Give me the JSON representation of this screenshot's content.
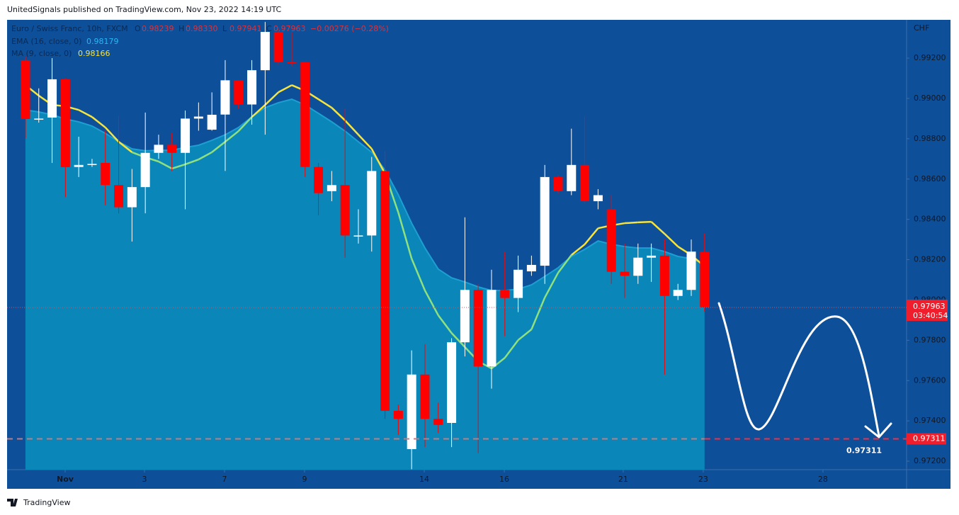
{
  "header": {
    "published": "UnitedSignals published on TradingView.com, Nov 23, 2022 14:19 UTC",
    "footer": "TradingView"
  },
  "chart_data": {
    "type": "candlestick",
    "symbol": "Euro / Swiss Franc, 10h, FXCM",
    "ohlc_legend": [
      {
        "key": "O",
        "text": "0.98239"
      },
      {
        "key": "H",
        "text": "0.98330"
      },
      {
        "key": "L",
        "text": "0.97941"
      },
      {
        "key": "C",
        "text": "0.97963"
      }
    ],
    "change": "−0.00276 (−0.28%)",
    "currency": "CHF",
    "candles": {
      "open": [
        0.9919,
        0.98895,
        0.98905,
        0.99095,
        0.9866,
        0.98675,
        0.9868,
        0.9857,
        0.9846,
        0.9856,
        0.9873,
        0.9877,
        0.9873,
        0.989,
        0.98845,
        0.9892,
        0.9909,
        0.9897,
        0.9914,
        0.9933,
        0.9918,
        0.9918,
        0.9866,
        0.9854,
        0.9857,
        0.9832,
        0.9832,
        0.9864,
        0.9745,
        0.9726,
        0.9763,
        0.9741,
        0.9739,
        0.9779,
        0.9805,
        0.9767,
        0.9805,
        0.9801,
        0.98142,
        0.9817,
        0.9861,
        0.9854,
        0.9867,
        0.9849,
        0.9845,
        0.9814,
        0.9812,
        0.9821,
        0.9822,
        0.9802,
        0.9805,
        0.98239
      ],
      "high": [
        0.99207,
        0.9905,
        0.992,
        0.991,
        0.9881,
        0.987,
        0.9884,
        0.9891,
        0.9865,
        0.9893,
        0.9882,
        0.9883,
        0.9894,
        0.9898,
        0.9903,
        0.9919,
        0.9909,
        0.9919,
        0.9938,
        0.9935,
        0.9933,
        0.9918,
        0.9868,
        0.9864,
        0.9895,
        0.9845,
        0.9871,
        0.9874,
        0.9748,
        0.9775,
        0.9778,
        0.9749,
        0.9781,
        0.9841,
        0.9808,
        0.9815,
        0.9824,
        0.9822,
        0.9822,
        0.9867,
        0.9862,
        0.9885,
        0.9891,
        0.9855,
        0.9852,
        0.9828,
        0.9828,
        0.9828,
        0.983,
        0.9808,
        0.983,
        0.9833
      ],
      "low": [
        0.98803,
        0.9888,
        0.9868,
        0.9851,
        0.9861,
        0.9866,
        0.9847,
        0.9843,
        0.9829,
        0.9843,
        0.987,
        0.9864,
        0.9845,
        0.9884,
        0.9884,
        0.9864,
        0.9895,
        0.9887,
        0.9882,
        0.9917,
        0.9916,
        0.9861,
        0.9842,
        0.9849,
        0.9821,
        0.9828,
        0.9824,
        0.9741,
        0.9733,
        0.9716,
        0.9727,
        0.9734,
        0.9727,
        0.9772,
        0.9724,
        0.9756,
        0.9782,
        0.9794,
        0.9812,
        0.9808,
        0.9853,
        0.9852,
        0.9848,
        0.9845,
        0.9808,
        0.9801,
        0.9808,
        0.9809,
        0.9763,
        0.98,
        0.9802,
        0.97941
      ],
      "close": [
        0.98898,
        0.989,
        0.99095,
        0.98659,
        0.9867,
        0.98675,
        0.9857,
        0.9846,
        0.9856,
        0.9873,
        0.9877,
        0.9873,
        0.989,
        0.9891,
        0.98919,
        0.9909,
        0.9897,
        0.9914,
        0.9933,
        0.9918,
        0.99175,
        0.9866,
        0.9853,
        0.9857,
        0.9832,
        0.9832,
        0.9864,
        0.9745,
        0.9741,
        0.9763,
        0.9741,
        0.9738,
        0.9779,
        0.9805,
        0.9767,
        0.9805,
        0.9801,
        0.9815,
        0.98174,
        0.9861,
        0.9854,
        0.9867,
        0.9849,
        0.9852,
        0.9814,
        0.9812,
        0.9821,
        0.9822,
        0.9802,
        0.9805,
        0.9824,
        0.97963
      ],
      "up_color": "#ffffff",
      "down_color": "#ff0000"
    },
    "ema": {
      "name": "EMA (16, close, 0)",
      "value_label": "0.98179",
      "color": "#1e9fd2",
      "fill": "#0a86b8",
      "values": [
        0.98943,
        0.98933,
        0.98919,
        0.98898,
        0.98884,
        0.98863,
        0.98827,
        0.98785,
        0.9875,
        0.9874,
        0.98743,
        0.98743,
        0.98757,
        0.98768,
        0.98792,
        0.9882,
        0.98856,
        0.98908,
        0.98954,
        0.98979,
        0.98996,
        0.98968,
        0.98926,
        0.98884,
        0.98838,
        0.98785,
        0.98733,
        0.98645,
        0.98522,
        0.98381,
        0.98258,
        0.98153,
        0.9811,
        0.98089,
        0.98065,
        0.98047,
        0.98047,
        0.98054,
        0.98075,
        0.98117,
        0.9816,
        0.98216,
        0.98251,
        0.98293,
        0.98276,
        0.98265,
        0.98258,
        0.98258,
        0.9824,
        0.98216,
        0.98205,
        0.98179
      ]
    },
    "ma": {
      "name": "MA (9, close, 0)",
      "value_label": "0.98166",
      "color_above": "#f7e43c",
      "color_below": "#8fe07f",
      "values": [
        0.99066,
        0.99014,
        0.98968,
        0.98961,
        0.98943,
        0.98908,
        0.98856,
        0.98785,
        0.98733,
        0.98708,
        0.98687,
        0.98652,
        0.98673,
        0.98697,
        0.98733,
        0.98785,
        0.98838,
        0.98908,
        0.98968,
        0.99031,
        0.99066,
        0.99038,
        0.98996,
        0.98954,
        0.98891,
        0.9882,
        0.9875,
        0.98627,
        0.98434,
        0.98205,
        0.98047,
        0.97924,
        0.97836,
        0.97766,
        0.97696,
        0.9766,
        0.97713,
        0.97801,
        0.97854,
        0.98012,
        0.98135,
        0.98223,
        0.98276,
        0.98356,
        0.9837,
        0.98381,
        0.98385,
        0.98388,
        0.98328,
        0.98265,
        0.98223,
        0.98166
      ]
    },
    "xlim": [
      -1.38,
      66.17
    ],
    "xticks": [
      {
        "value": 2.98,
        "label": "Nov"
      },
      {
        "value": 8.94,
        "label": "3"
      },
      {
        "value": 14.95,
        "label": "7"
      },
      {
        "value": 20.96,
        "label": "9"
      },
      {
        "value": 29.95,
        "label": "14"
      },
      {
        "value": 35.96,
        "label": "16"
      },
      {
        "value": 44.89,
        "label": "21"
      },
      {
        "value": 50.9,
        "label": "23"
      },
      {
        "value": 59.89,
        "label": "28"
      }
    ],
    "ylim": [
      0.97158,
      0.9939
    ],
    "yticks": [
      {
        "value": 0.972,
        "label": "0.97200"
      },
      {
        "value": 0.974,
        "label": "0.97400"
      },
      {
        "value": 0.976,
        "label": "0.97600"
      },
      {
        "value": 0.978,
        "label": "0.97800"
      },
      {
        "value": 0.98,
        "label": "0.98000"
      },
      {
        "value": 0.982,
        "label": "0.98200"
      },
      {
        "value": 0.984,
        "label": "0.98400"
      },
      {
        "value": 0.986,
        "label": "0.98600"
      },
      {
        "value": 0.988,
        "label": "0.98800"
      },
      {
        "value": 0.99,
        "label": "0.99000"
      },
      {
        "value": 0.992,
        "label": "0.99200"
      }
    ],
    "last_price": {
      "label": "0.97963",
      "countdown": "03:40:54"
    },
    "target": {
      "value": 0.97311,
      "label": "0.97311"
    }
  }
}
